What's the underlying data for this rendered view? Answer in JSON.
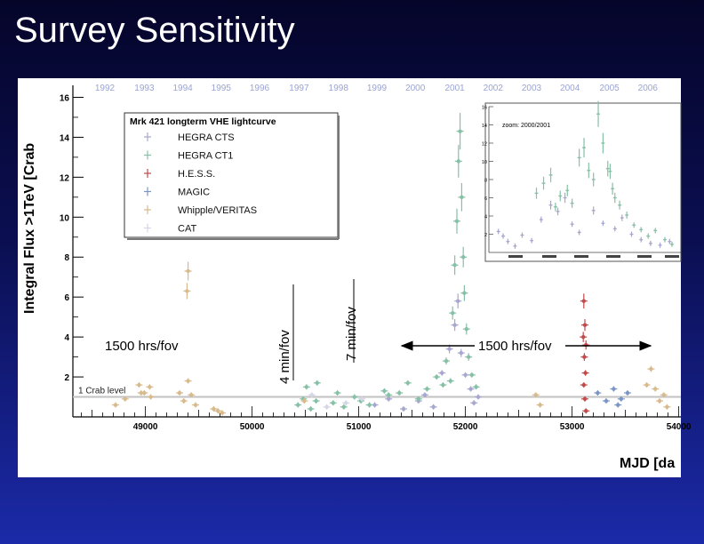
{
  "slide": {
    "title": "Survey Sensitivity"
  },
  "chart_data": {
    "type": "scatter",
    "ylabel": "Integral Flux >1TeV [Crab",
    "xlabel": "MJD [da",
    "xlim": [
      48320,
      54020
    ],
    "ylim": [
      0,
      16.6
    ],
    "x_ticks": [
      49000,
      50000,
      51000,
      52000,
      53000,
      54000
    ],
    "y_ticks": [
      2,
      4,
      6,
      8,
      10,
      12,
      14,
      16
    ],
    "years": [
      {
        "label": "1992",
        "mjd": 48620
      },
      {
        "label": "1993",
        "mjd": 48990
      },
      {
        "label": "1994",
        "mjd": 49350
      },
      {
        "label": "1995",
        "mjd": 49710
      },
      {
        "label": "1996",
        "mjd": 50070
      },
      {
        "label": "1997",
        "mjd": 50440
      },
      {
        "label": "1998",
        "mjd": 50810
      },
      {
        "label": "1999",
        "mjd": 51170
      },
      {
        "label": "2000",
        "mjd": 51530
      },
      {
        "label": "2001",
        "mjd": 51900
      },
      {
        "label": "2002",
        "mjd": 52260
      },
      {
        "label": "2003",
        "mjd": 52620
      },
      {
        "label": "2004",
        "mjd": 52980
      },
      {
        "label": "2005",
        "mjd": 53350
      },
      {
        "label": "2006",
        "mjd": 53710
      }
    ],
    "crab_level": {
      "label": "1 Crab level",
      "y": 1.0
    },
    "legend": {
      "title": "Mrk 421 longterm VHE lightcurve",
      "position": "top-left"
    },
    "series": [
      {
        "name": "HEGRA CTS",
        "color": "#a7a7cf",
        "points": [
          [
            51150,
            0.6
          ],
          [
            51280,
            0.9
          ],
          [
            51420,
            0.4
          ],
          [
            51560,
            0.8
          ],
          [
            51620,
            1.1
          ],
          [
            51700,
            0.5
          ],
          [
            51780,
            2.2
          ],
          [
            51850,
            3.4
          ],
          [
            51900,
            4.6
          ],
          [
            51930,
            5.8
          ],
          [
            51960,
            3.2
          ],
          [
            52000,
            2.1
          ],
          [
            52050,
            1.4
          ],
          [
            52080,
            0.7
          ],
          [
            52120,
            1.0
          ]
        ]
      },
      {
        "name": "HEGRA CT1",
        "color": "#86c0a6",
        "points": [
          [
            50430,
            0.6
          ],
          [
            50480,
            0.9
          ],
          [
            50510,
            1.5
          ],
          [
            50550,
            0.4
          ],
          [
            50600,
            0.8
          ],
          [
            50760,
            0.7
          ],
          [
            50800,
            1.2
          ],
          [
            50860,
            0.5
          ],
          [
            50960,
            1.0
          ],
          [
            51020,
            0.8
          ],
          [
            51100,
            0.6
          ],
          [
            51380,
            1.2
          ],
          [
            51460,
            1.7
          ],
          [
            51560,
            0.9
          ],
          [
            51640,
            1.4
          ],
          [
            51730,
            2.0
          ],
          [
            51790,
            1.6
          ],
          [
            51820,
            2.8
          ],
          [
            51860,
            1.8
          ],
          [
            51880,
            5.2
          ],
          [
            51900,
            7.6
          ],
          [
            51920,
            9.8
          ],
          [
            51935,
            12.8
          ],
          [
            51950,
            14.3
          ],
          [
            51965,
            11.0
          ],
          [
            51980,
            8.0
          ],
          [
            51990,
            6.2
          ],
          [
            52010,
            4.4
          ],
          [
            52030,
            3.0
          ],
          [
            52060,
            2.1
          ],
          [
            52100,
            1.5
          ],
          [
            50610,
            1.7
          ],
          [
            51280,
            1.1
          ],
          [
            51240,
            1.3
          ]
        ]
      },
      {
        "name": "H.E.S.S.",
        "color": "#c24a4a",
        "points": [
          [
            53110,
            5.8
          ],
          [
            53120,
            4.6
          ],
          [
            53105,
            4.0
          ],
          [
            53130,
            3.6
          ],
          [
            53115,
            3.0
          ],
          [
            53125,
            2.2
          ],
          [
            53110,
            1.6
          ],
          [
            53120,
            0.9
          ],
          [
            53130,
            0.3
          ]
        ]
      },
      {
        "name": "MAGIC",
        "color": "#7b95c6",
        "points": [
          [
            53240,
            1.2
          ],
          [
            53320,
            0.8
          ],
          [
            53390,
            1.4
          ],
          [
            53430,
            0.6
          ],
          [
            53460,
            0.9
          ],
          [
            53520,
            1.2
          ]
        ]
      },
      {
        "name": "Whipple/VERITAS",
        "color": "#d8ba8c",
        "points": [
          [
            48720,
            0.6
          ],
          [
            48810,
            0.9
          ],
          [
            48940,
            1.6
          ],
          [
            48990,
            1.2
          ],
          [
            49040,
            1.5
          ],
          [
            49320,
            1.2
          ],
          [
            49360,
            0.8
          ],
          [
            49400,
            1.8
          ],
          [
            49430,
            1.1
          ],
          [
            49470,
            0.6
          ],
          [
            49640,
            0.4
          ],
          [
            49680,
            0.3
          ],
          [
            49720,
            0.2
          ],
          [
            49390,
            6.3
          ],
          [
            49400,
            7.3
          ],
          [
            50490,
            0.8
          ],
          [
            52660,
            1.1
          ],
          [
            52700,
            0.6
          ],
          [
            53700,
            1.6
          ],
          [
            53740,
            2.4
          ],
          [
            53780,
            1.4
          ],
          [
            53820,
            0.8
          ],
          [
            53860,
            1.1
          ],
          [
            53890,
            0.5
          ],
          [
            49050,
            1.0
          ],
          [
            48960,
            1.2
          ]
        ]
      },
      {
        "name": "CAT",
        "color": "#d6d6e6",
        "points": [
          [
            50560,
            1.1
          ],
          [
            50700,
            0.5
          ],
          [
            50880,
            0.7
          ],
          [
            51030,
            0.9
          ]
        ]
      }
    ],
    "inset": {
      "title": "zoom: 2000/2001",
      "y_ticks": [
        2,
        4,
        6,
        8,
        10,
        12,
        14,
        16
      ],
      "ylim": [
        0,
        16
      ],
      "xlim": [
        51500,
        52300
      ],
      "series": [
        {
          "name": "HEGRA CTS",
          "color": "#a7a7cf",
          "points": [
            [
              51540,
              2.3
            ],
            [
              51560,
              1.8
            ],
            [
              51580,
              1.2
            ],
            [
              51610,
              0.7
            ],
            [
              51640,
              1.9
            ],
            [
              51680,
              1.3
            ],
            [
              51720,
              3.6
            ],
            [
              51760,
              5.2
            ],
            [
              51790,
              4.5
            ],
            [
              51820,
              6.0
            ],
            [
              51850,
              3.1
            ],
            [
              51880,
              2.2
            ],
            [
              51940,
              4.6
            ],
            [
              51980,
              3.2
            ],
            [
              52030,
              2.6
            ],
            [
              52060,
              3.8
            ],
            [
              52100,
              2.0
            ],
            [
              52140,
              1.4
            ],
            [
              52180,
              1.0
            ],
            [
              52220,
              0.8
            ],
            [
              52260,
              1.2
            ]
          ]
        },
        {
          "name": "HEGRA CT1",
          "color": "#86c0a6",
          "points": [
            [
              51700,
              6.5
            ],
            [
              51730,
              7.6
            ],
            [
              51760,
              8.5
            ],
            [
              51780,
              5.0
            ],
            [
              51800,
              6.2
            ],
            [
              51830,
              6.8
            ],
            [
              51850,
              5.4
            ],
            [
              51880,
              10.4
            ],
            [
              51900,
              11.5
            ],
            [
              51920,
              9.0
            ],
            [
              51940,
              8.0
            ],
            [
              51960,
              15.2
            ],
            [
              51980,
              12.0
            ],
            [
              52000,
              9.2
            ],
            [
              52010,
              8.9
            ],
            [
              52020,
              7.0
            ],
            [
              52030,
              6.0
            ],
            [
              52050,
              5.2
            ],
            [
              52080,
              4.1
            ],
            [
              52110,
              3.0
            ],
            [
              52140,
              2.5
            ],
            [
              52170,
              1.8
            ],
            [
              52200,
              2.4
            ],
            [
              52240,
              1.4
            ],
            [
              52270,
              0.9
            ]
          ]
        }
      ]
    },
    "annotations": [
      {
        "text": "1500 hrs/fov",
        "kind": "label"
      },
      {
        "text": "4 min/fov",
        "kind": "rotated-label"
      },
      {
        "text": "7 min/fov",
        "kind": "rotated-label"
      },
      {
        "text": "1500 hrs/fov",
        "kind": "double-arrow-label"
      }
    ]
  }
}
